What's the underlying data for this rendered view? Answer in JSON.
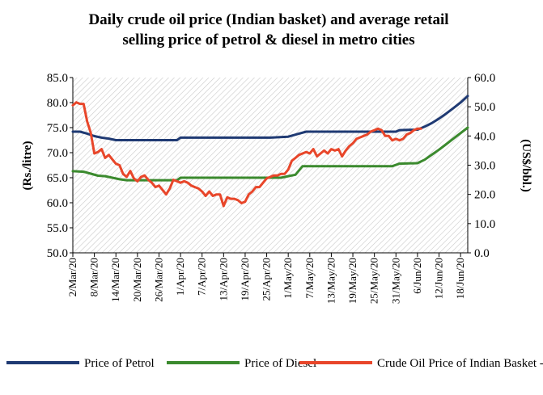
{
  "chart_data": {
    "type": "line",
    "title_lines": [
      "Daily crude oil price (Indian basket) and average retail",
      "selling price of petrol & diesel in metro cities"
    ],
    "ylabel": "(Rs./litre)",
    "ylabel_right": "(US$/bbl.)",
    "ylim": [
      50,
      85
    ],
    "ylim_right": [
      0,
      60
    ],
    "yticks": [
      "50.0",
      "55.0",
      "60.0",
      "65.0",
      "70.0",
      "75.0",
      "80.0",
      "85.0"
    ],
    "yticks_right": [
      "0.0",
      "10.0",
      "20.0",
      "30.0",
      "40.0",
      "50.0",
      "60.0"
    ],
    "x_tick_labels": [
      "2/Mar/20",
      "8/Mar/20",
      "14/Mar/20",
      "20/Mar/20",
      "26/Mar/20",
      "1/Apr/20",
      "7/Apr/20",
      "13/Apr/20",
      "19/Apr/20",
      "25/Apr/20",
      "1/May/20",
      "7/May/20",
      "13/May/20",
      "19/May/20",
      "25/May/20",
      "31/May/20",
      "6/Jun/20",
      "12/Jun/20",
      "18/Jun/20"
    ],
    "legend_position": "bottom",
    "plot_background": "diagonal hatch",
    "series": [
      {
        "name": "Price of Petrol",
        "axis": "left",
        "color": "#1f3a73",
        "points": [
          [
            0,
            74.2
          ],
          [
            2,
            74.2
          ],
          [
            4,
            73.8
          ],
          [
            6,
            73.3
          ],
          [
            8,
            73.0
          ],
          [
            10,
            72.8
          ],
          [
            12,
            72.5
          ],
          [
            15,
            72.5
          ],
          [
            20,
            72.5
          ],
          [
            25,
            72.5
          ],
          [
            29,
            72.5
          ],
          [
            30,
            73.0
          ],
          [
            35,
            73.0
          ],
          [
            45,
            73.0
          ],
          [
            55,
            73.0
          ],
          [
            60,
            73.2
          ],
          [
            63,
            73.8
          ],
          [
            65,
            74.2
          ],
          [
            70,
            74.2
          ],
          [
            80,
            74.2
          ],
          [
            90,
            74.2
          ],
          [
            91,
            74.5
          ],
          [
            96,
            74.6
          ],
          [
            98,
            75.2
          ],
          [
            100,
            75.9
          ],
          [
            102,
            76.8
          ],
          [
            104,
            77.8
          ],
          [
            106,
            78.9
          ],
          [
            108,
            80.0
          ],
          [
            110,
            81.3
          ]
        ]
      },
      {
        "name": "Price of Diesel",
        "axis": "left",
        "color": "#3b8a2e",
        "points": [
          [
            0,
            66.3
          ],
          [
            3,
            66.2
          ],
          [
            5,
            65.8
          ],
          [
            7,
            65.4
          ],
          [
            9,
            65.3
          ],
          [
            11,
            65.0
          ],
          [
            13,
            64.7
          ],
          [
            15,
            64.5
          ],
          [
            20,
            64.5
          ],
          [
            25,
            64.5
          ],
          [
            29,
            64.5
          ],
          [
            30,
            65.0
          ],
          [
            40,
            65.0
          ],
          [
            50,
            65.0
          ],
          [
            58,
            65.0
          ],
          [
            60,
            65.3
          ],
          [
            62,
            65.6
          ],
          [
            64,
            67.3
          ],
          [
            70,
            67.3
          ],
          [
            80,
            67.3
          ],
          [
            89,
            67.3
          ],
          [
            91,
            67.8
          ],
          [
            96,
            67.9
          ],
          [
            98,
            68.6
          ],
          [
            100,
            69.6
          ],
          [
            102,
            70.6
          ],
          [
            104,
            71.7
          ],
          [
            106,
            72.8
          ],
          [
            108,
            73.9
          ],
          [
            110,
            75.0
          ]
        ]
      },
      {
        "name": "Crude Oil Price of Indian Basket -RHS",
        "axis": "right",
        "color": "#e8462a",
        "points": [
          [
            0,
            50.5
          ],
          [
            1,
            51.5
          ],
          [
            2,
            51.0
          ],
          [
            3,
            51.0
          ],
          [
            4,
            45.0
          ],
          [
            5,
            41.0
          ],
          [
            6,
            34.0
          ],
          [
            7,
            34.5
          ],
          [
            8,
            35.5
          ],
          [
            9,
            32.5
          ],
          [
            10,
            33.5
          ],
          [
            11,
            32.0
          ],
          [
            12,
            30.5
          ],
          [
            13,
            30.0
          ],
          [
            14,
            27.0
          ],
          [
            15,
            26.0
          ],
          [
            16,
            28.0
          ],
          [
            17,
            25.5
          ],
          [
            18,
            24.5
          ],
          [
            19,
            26.0
          ],
          [
            20,
            26.5
          ],
          [
            21,
            25.0
          ],
          [
            22,
            24.0
          ],
          [
            23,
            22.5
          ],
          [
            24,
            23.0
          ],
          [
            25,
            21.5
          ],
          [
            26,
            20.0
          ],
          [
            27,
            22.0
          ],
          [
            28,
            25.0
          ],
          [
            29,
            24.5
          ],
          [
            30,
            24.0
          ],
          [
            31,
            24.5
          ],
          [
            32,
            24.0
          ],
          [
            33,
            23.0
          ],
          [
            34,
            22.5
          ],
          [
            35,
            22.0
          ],
          [
            36,
            21.0
          ],
          [
            37,
            19.5
          ],
          [
            38,
            21.0
          ],
          [
            39,
            19.5
          ],
          [
            40,
            20.0
          ],
          [
            41,
            20.0
          ],
          [
            42,
            16.0
          ],
          [
            43,
            19.0
          ],
          [
            44,
            18.5
          ],
          [
            45,
            18.5
          ],
          [
            46,
            18.0
          ],
          [
            47,
            17.0
          ],
          [
            48,
            17.5
          ],
          [
            49,
            20.0
          ],
          [
            50,
            21.0
          ],
          [
            51,
            22.5
          ],
          [
            52,
            22.5
          ],
          [
            53,
            24.0
          ],
          [
            54,
            25.5
          ],
          [
            55,
            26.0
          ],
          [
            56,
            26.5
          ],
          [
            57,
            26.5
          ],
          [
            58,
            27.0
          ],
          [
            59,
            27.0
          ],
          [
            60,
            28.5
          ],
          [
            61,
            31.5
          ],
          [
            62,
            32.5
          ],
          [
            63,
            33.5
          ],
          [
            64,
            34.0
          ],
          [
            65,
            34.5
          ],
          [
            66,
            34.0
          ],
          [
            67,
            35.5
          ],
          [
            68,
            33.0
          ],
          [
            69,
            34.0
          ],
          [
            70,
            35.0
          ],
          [
            71,
            34.0
          ],
          [
            72,
            35.5
          ],
          [
            73,
            35.0
          ],
          [
            74,
            35.5
          ],
          [
            75,
            33.0
          ],
          [
            76,
            35.0
          ],
          [
            77,
            36.5
          ],
          [
            78,
            37.5
          ],
          [
            79,
            39.0
          ],
          [
            80,
            39.5
          ],
          [
            81,
            40.0
          ],
          [
            82,
            40.5
          ],
          [
            83,
            41.5
          ],
          [
            84,
            42.0
          ],
          [
            85,
            42.5
          ],
          [
            86,
            42.0
          ],
          [
            87,
            40.0
          ],
          [
            88,
            40.0
          ],
          [
            89,
            38.5
          ],
          [
            90,
            39.0
          ],
          [
            91,
            38.5
          ],
          [
            92,
            39.0
          ],
          [
            93,
            40.5
          ],
          [
            94,
            41.0
          ],
          [
            95,
            42.0
          ],
          [
            96,
            42.5
          ],
          [
            97,
            42.5
          ]
        ]
      }
    ]
  }
}
